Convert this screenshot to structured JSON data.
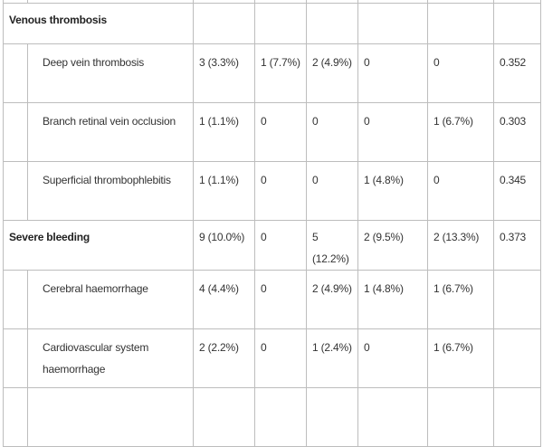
{
  "rows": [
    {
      "type": "category",
      "label": "Venous thrombosis",
      "values": [
        "",
        "",
        "",
        "",
        "",
        ""
      ]
    },
    {
      "type": "item",
      "label": "Deep vein thrombosis",
      "values": [
        "3 (3.3%)",
        "1 (7.7%)",
        "2 (4.9%)",
        "0",
        "0",
        "0.352"
      ]
    },
    {
      "type": "item",
      "label": "Branch retinal vein occlusion",
      "values": [
        "1 (1.1%)",
        "0",
        "0",
        "0",
        "1 (6.7%)",
        "0.303"
      ]
    },
    {
      "type": "item",
      "label": "Superficial thrombophlebitis",
      "values": [
        "1 (1.1%)",
        "0",
        "0",
        "1 (4.8%)",
        "0",
        "0.345"
      ]
    },
    {
      "type": "category",
      "label": "Severe bleeding",
      "values": [
        "9 (10.0%)",
        "0",
        "5 (12.2%)",
        "2 (9.5%)",
        "2 (13.3%)",
        "0.373"
      ]
    },
    {
      "type": "item",
      "label": "Cerebral haemorrhage",
      "values": [
        "4 (4.4%)",
        "0",
        "2 (4.9%)",
        "1 (4.8%)",
        "1 (6.7%)",
        ""
      ]
    },
    {
      "type": "item",
      "label": "Cardiovascular system haemorrhage",
      "values": [
        "2 (2.2%)",
        "0",
        "1 (2.4%)",
        "0",
        "1 (6.7%)",
        ""
      ]
    }
  ]
}
